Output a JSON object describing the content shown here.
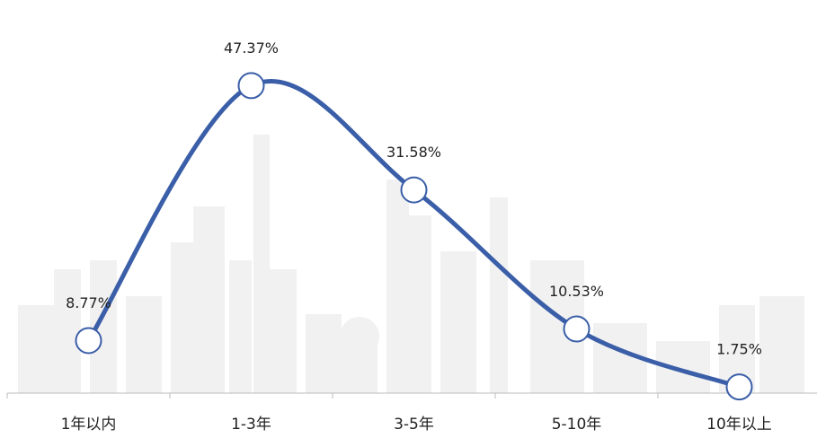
{
  "chart_data": {
    "type": "line",
    "categories": [
      "1年以内",
      "1-3年",
      "3-5年",
      "5-10年",
      "10年以上"
    ],
    "values": [
      8.77,
      47.37,
      31.58,
      10.53,
      1.75
    ],
    "value_labels": [
      "8.77%",
      "47.37%",
      "31.58%",
      "10.53%",
      "1.75%"
    ],
    "color": "#3a5ea8",
    "ylim": [
      0,
      50
    ]
  }
}
